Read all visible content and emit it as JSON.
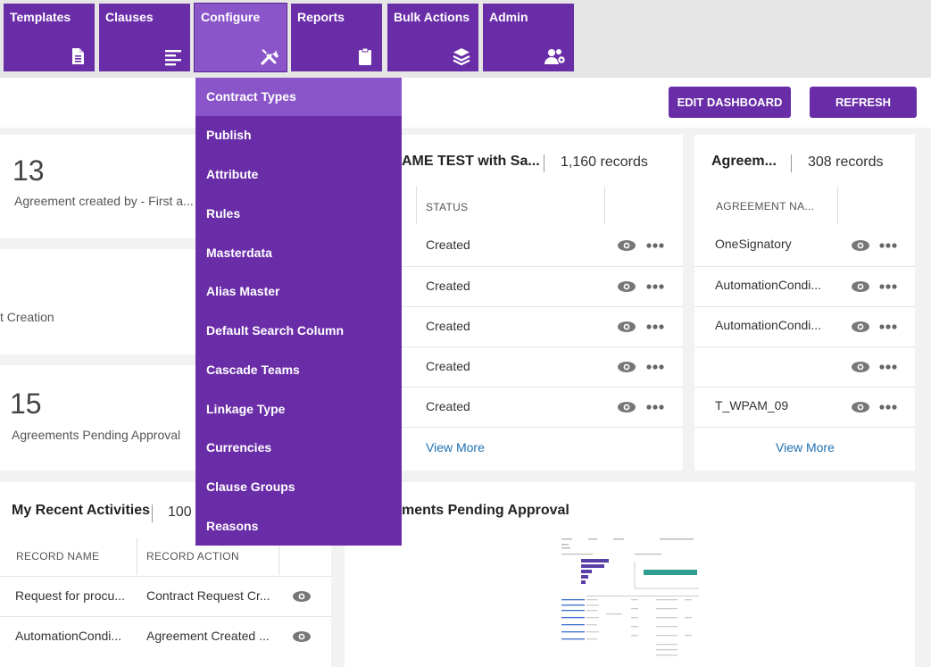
{
  "nav": {
    "tiles": [
      {
        "label": "Templates",
        "icon": "document-icon"
      },
      {
        "label": "Clauses",
        "icon": "lines-icon"
      },
      {
        "label": "Configure",
        "icon": "tools-icon"
      },
      {
        "label": "Reports",
        "icon": "clipboard-icon"
      },
      {
        "label": "Bulk Actions",
        "icon": "layers-icon"
      },
      {
        "label": "Admin",
        "icon": "users-gear-icon"
      }
    ]
  },
  "actions": {
    "edit_dashboard": "EDIT DASHBOARD",
    "refresh": "REFRESH"
  },
  "configure_menu": {
    "items": [
      "Contract Types",
      "Publish",
      "Attribute",
      "Rules",
      "Masterdata",
      "Alias Master",
      "Default Search Column",
      "Cascade Teams",
      "Linkage Type",
      "Currencies",
      "Clause Groups",
      "Reasons"
    ]
  },
  "widgets": {
    "count1": {
      "value": "13",
      "label": "Agreement created by - First a..."
    },
    "count2": {
      "label": "t Creation"
    },
    "count3": {
      "value": "15",
      "label": "Agreements Pending Approval"
    },
    "recent": {
      "title": "My Recent Activities",
      "records": "100",
      "headers": [
        "RECORD NAME",
        "RECORD ACTION"
      ],
      "rows": [
        {
          "name": "Request for procu...",
          "action": "Contract Request Cr..."
        },
        {
          "name": "AutomationCondi...",
          "action": "Agreement Created ..."
        }
      ]
    },
    "status_list": {
      "title": "AME TEST with Sa...",
      "records": "1,160 records",
      "header": "STATUS",
      "rows": [
        "Created",
        "Created",
        "Created",
        "Created",
        "Created"
      ],
      "view_more": "View More"
    },
    "agreement_list": {
      "title": "Agreem...",
      "records": "308 records",
      "header": "AGREEMENT NA...",
      "rows": [
        "OneSignatory",
        "AutomationCondi...",
        "AutomationCondi...",
        "",
        "T_WPAM_09"
      ],
      "view_more": "View More"
    },
    "pending_chart": {
      "title": "ments Pending Approval"
    }
  },
  "colors": {
    "brand": "#6a2da8",
    "brand_highlight": "#8a55c9",
    "link": "#1f6fb2"
  }
}
